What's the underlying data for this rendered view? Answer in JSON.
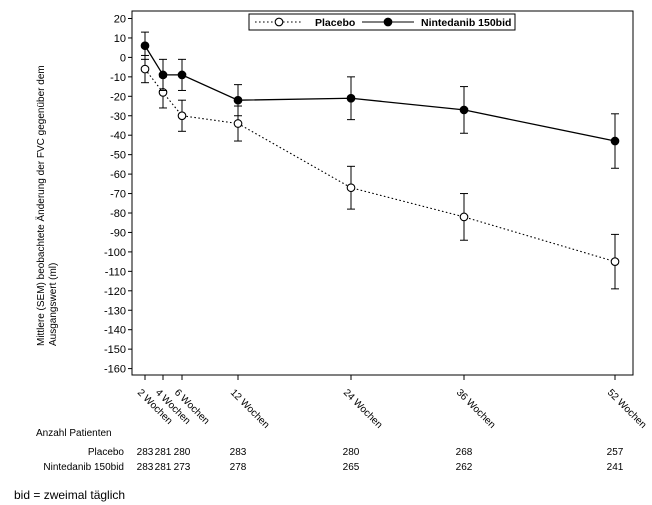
{
  "chart_data": {
    "type": "line",
    "ylabel": "Mittlere (SEM) beobachtete Änderung der FVC gegenüber dem Ausgangswert (ml)",
    "ylabel_lines": [
      "Mittlere (SEM) beobachtete Änderung der FVC gegenüber dem",
      "Ausgangswert (ml)"
    ],
    "ylim": [
      -165,
      20
    ],
    "yticks": [
      20,
      10,
      0,
      -10,
      -20,
      -30,
      -40,
      -50,
      -60,
      -70,
      -80,
      -90,
      -100,
      -110,
      -120,
      -130,
      -140,
      -150,
      -160
    ],
    "xticks": [
      {
        "week": 2,
        "label": "2 Wochen"
      },
      {
        "week": 4,
        "label": "4 Wochen"
      },
      {
        "week": 6,
        "label": "6 Wochen"
      },
      {
        "week": 12,
        "label": "12 Wochen"
      },
      {
        "week": 24,
        "label": "24 Wochen"
      },
      {
        "week": 36,
        "label": "36 Wochen"
      },
      {
        "week": 52,
        "label": "52 Wochen"
      }
    ],
    "grid": false,
    "legend_position": "top-right",
    "series": [
      {
        "name": "Placebo",
        "marker": "open-circle",
        "line_style": "dotted",
        "x": [
          2,
          4,
          6,
          12,
          24,
          36,
          52
        ],
        "y": [
          -6,
          -18,
          -30,
          -34,
          -67,
          -82,
          -105
        ],
        "err": [
          7,
          8,
          8,
          9,
          11,
          12,
          14
        ]
      },
      {
        "name": "Nintedanib 150bid",
        "marker": "filled-circle",
        "line_style": "solid",
        "x": [
          2,
          4,
          6,
          12,
          24,
          36,
          52
        ],
        "y": [
          6,
          -9,
          -9,
          -22,
          -21,
          -27,
          -43
        ],
        "err": [
          7,
          8,
          8,
          8,
          11,
          12,
          14
        ]
      }
    ],
    "patients_table": {
      "title": "Anzahl Patienten",
      "rows": [
        {
          "label": "Placebo",
          "values": [
            "283",
            "281",
            "280",
            "283",
            "280",
            "268",
            "257"
          ]
        },
        {
          "label": "Nintedanib 150bid",
          "values": [
            "283",
            "281",
            "273",
            "278",
            "265",
            "262",
            "241"
          ]
        }
      ]
    }
  },
  "footnote": "bid = zweimal täglich"
}
